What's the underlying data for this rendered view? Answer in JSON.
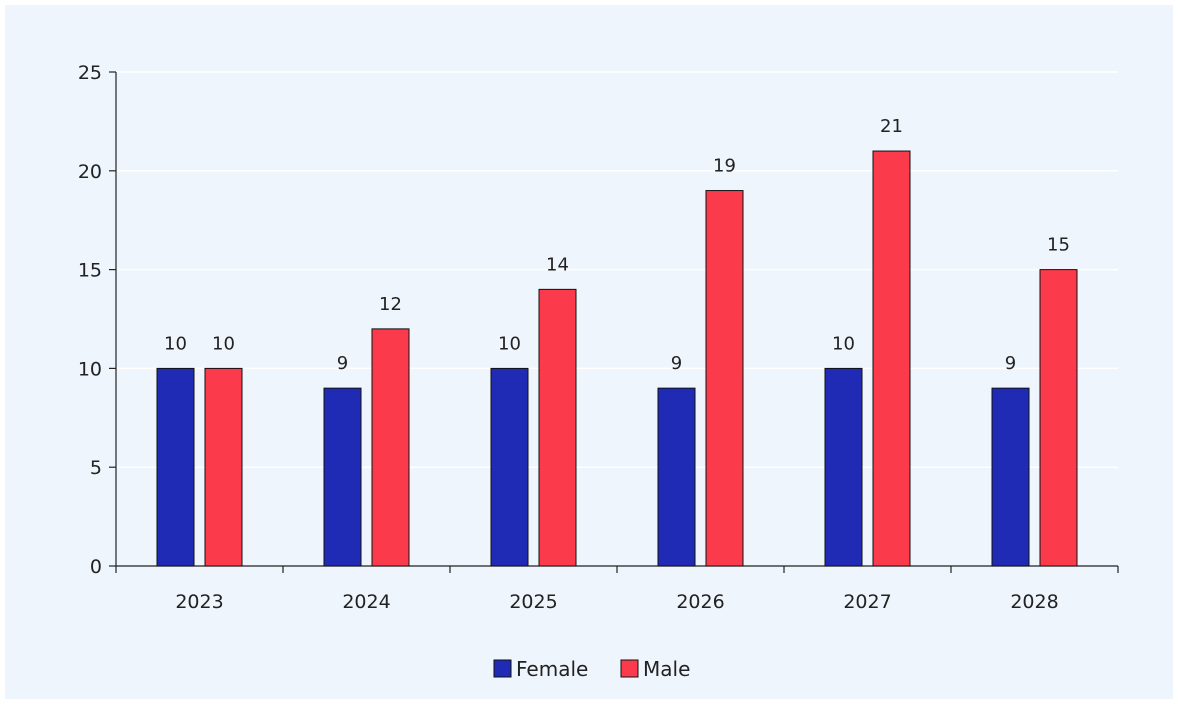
{
  "chart_data": {
    "type": "bar",
    "categories": [
      "2023",
      "2024",
      "2025",
      "2026",
      "2027",
      "2028"
    ],
    "series": [
      {
        "name": "Female",
        "values": [
          10,
          9,
          10,
          9,
          10,
          9
        ],
        "color": "#1f2ab5"
      },
      {
        "name": "Male",
        "values": [
          10,
          12,
          14,
          19,
          21,
          15
        ],
        "color": "#fb3a4b"
      }
    ],
    "ylim": [
      0,
      25
    ],
    "yticks": [
      "0",
      "5",
      "10",
      "15",
      "20",
      "25"
    ],
    "grid": true,
    "legend_placement": "bottom-center",
    "data_labels": true
  }
}
